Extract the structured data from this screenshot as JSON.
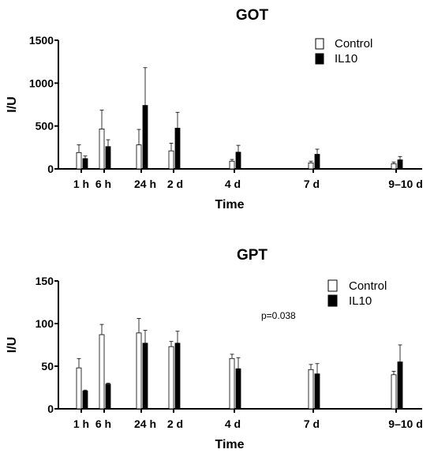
{
  "chart_data": [
    {
      "type": "bar",
      "title": "GOT",
      "xlabel": "Time",
      "ylabel": "I/U",
      "ylim": [
        0,
        1500
      ],
      "yticks": [
        "0",
        "500",
        "1000",
        "1500"
      ],
      "x": [
        1,
        6,
        24,
        48,
        96,
        168,
        228
      ],
      "categories": [
        "1 h",
        "6 h",
        "24 h",
        "2 d",
        "4 d",
        "7 d",
        "9–10 d"
      ],
      "legend": "top-right",
      "series": [
        {
          "name": "Control",
          "color": "#ffffff",
          "values": [
            190,
            465,
            280,
            210,
            90,
            70,
            60
          ],
          "errors": [
            90,
            220,
            180,
            90,
            20,
            20,
            20
          ]
        },
        {
          "name": "IL10",
          "color": "#000000",
          "values": [
            120,
            260,
            740,
            475,
            195,
            170,
            105
          ],
          "errors": [
            30,
            80,
            440,
            185,
            80,
            60,
            40
          ]
        }
      ],
      "annotation": ""
    },
    {
      "type": "bar",
      "title": "GPT",
      "xlabel": "Time",
      "ylabel": "I/U",
      "ylim": [
        0,
        150
      ],
      "yticks": [
        "0",
        "50",
        "100",
        "150"
      ],
      "x": [
        1,
        6,
        24,
        48,
        96,
        168,
        228
      ],
      "categories": [
        "1 h",
        "6 h",
        "24 h",
        "2 d",
        "4 d",
        "7 d",
        "9–10 d"
      ],
      "legend": "top-right",
      "series": [
        {
          "name": "Control",
          "color": "#ffffff",
          "values": [
            48,
            87,
            89,
            73,
            59,
            46,
            40
          ],
          "errors": [
            11,
            12,
            17,
            6,
            5,
            6,
            4
          ]
        },
        {
          "name": "IL10",
          "color": "#000000",
          "values": [
            21,
            29,
            77,
            77,
            47,
            41,
            55
          ],
          "errors": [
            1,
            1,
            15,
            14,
            13,
            12,
            20
          ]
        }
      ],
      "annotation": "p=0.038"
    }
  ]
}
